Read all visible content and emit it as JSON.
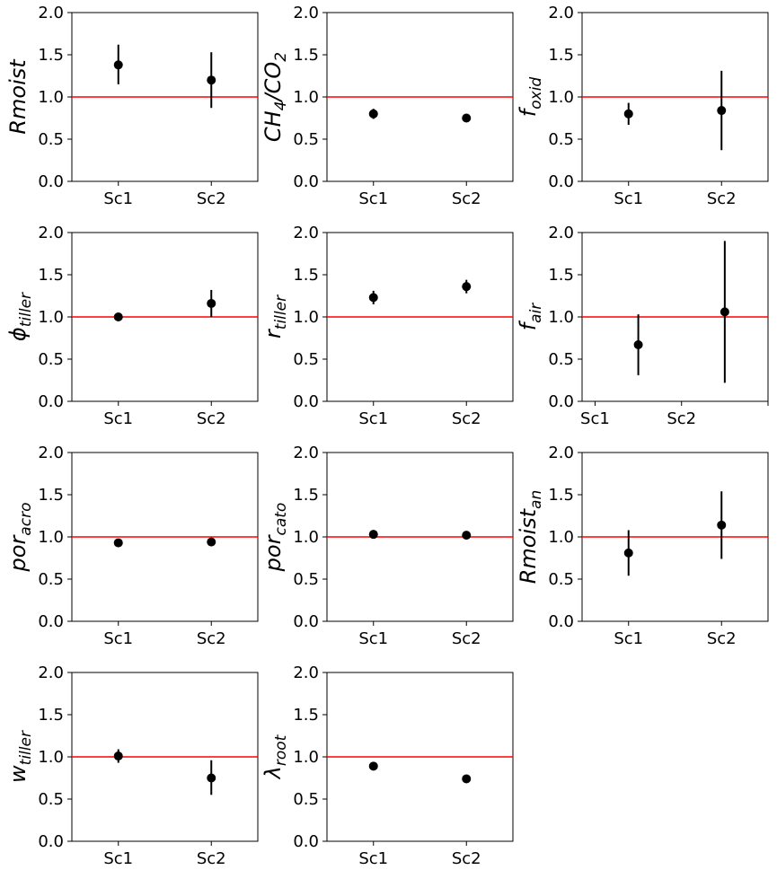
{
  "chart_data": [
    {
      "type": "scatter",
      "ylabel_main": "Rmoist",
      "ylabel_sub": "",
      "categories": [
        "Sc1",
        "Sc2"
      ],
      "ylim": [
        0,
        2.0
      ],
      "yticks": [
        "0.0",
        "0.5",
        "1.0",
        "1.5",
        "2.0"
      ],
      "reference_line": 1.0,
      "points": [
        {
          "x": "Sc1",
          "y": 1.38,
          "low": 1.15,
          "high": 1.62
        },
        {
          "x": "Sc2",
          "y": 1.2,
          "low": 0.87,
          "high": 1.53
        }
      ]
    },
    {
      "type": "scatter",
      "ylabel_main": "CH",
      "ylabel_sub": "4",
      "ylabel_main2": "/CO",
      "ylabel_sub2": "2",
      "categories": [
        "Sc1",
        "Sc2"
      ],
      "ylim": [
        0,
        2.0
      ],
      "yticks": [
        "0.0",
        "0.5",
        "1.0",
        "1.5",
        "2.0"
      ],
      "reference_line": 1.0,
      "points": [
        {
          "x": "Sc1",
          "y": 0.8,
          "low": 0.74,
          "high": 0.86
        },
        {
          "x": "Sc2",
          "y": 0.75,
          "low": 0.72,
          "high": 0.78
        }
      ]
    },
    {
      "type": "scatter",
      "ylabel_main": "f",
      "ylabel_sub": "oxid",
      "categories": [
        "Sc1",
        "Sc2"
      ],
      "ylim": [
        0,
        2.0
      ],
      "yticks": [
        "0.0",
        "0.5",
        "1.0",
        "1.5",
        "2.0"
      ],
      "reference_line": 1.0,
      "points": [
        {
          "x": "Sc1",
          "y": 0.8,
          "low": 0.67,
          "high": 0.93
        },
        {
          "x": "Sc2",
          "y": 0.84,
          "low": 0.37,
          "high": 1.31
        }
      ]
    },
    {
      "type": "scatter",
      "ylabel_main": "ϕ",
      "ylabel_sub": "tiller",
      "categories": [
        "Sc1",
        "Sc2"
      ],
      "ylim": [
        0,
        2.0
      ],
      "yticks": [
        "0.0",
        "0.5",
        "1.0",
        "1.5",
        "2.0"
      ],
      "reference_line": 1.0,
      "points": [
        {
          "x": "Sc1",
          "y": 1.0,
          "low": 0.97,
          "high": 1.03
        },
        {
          "x": "Sc2",
          "y": 1.16,
          "low": 1.0,
          "high": 1.32
        }
      ]
    },
    {
      "type": "scatter",
      "ylabel_main": "r",
      "ylabel_sub": "tiller",
      "categories": [
        "Sc1",
        "Sc2"
      ],
      "ylim": [
        0,
        2.0
      ],
      "yticks": [
        "0.0",
        "0.5",
        "1.0",
        "1.5",
        "2.0"
      ],
      "reference_line": 1.0,
      "points": [
        {
          "x": "Sc1",
          "y": 1.23,
          "low": 1.15,
          "high": 1.31
        },
        {
          "x": "Sc2",
          "y": 1.36,
          "low": 1.28,
          "high": 1.44
        }
      ]
    },
    {
      "type": "scatter",
      "ylabel_main": "f",
      "ylabel_sub": "air",
      "categories": [
        "Sc1",
        "Sc2"
      ],
      "tick_positions": [
        0,
        1,
        2
      ],
      "tick_labels": [
        "Sc1",
        "Sc2",
        ""
      ],
      "point_positions": [
        0.5,
        1.5
      ],
      "ylim": [
        0,
        2.0
      ],
      "yticks": [
        "0.0",
        "0.5",
        "1.0",
        "1.5",
        "2.0"
      ],
      "reference_line": 1.0,
      "points": [
        {
          "x": "Sc1",
          "y": 0.67,
          "low": 0.31,
          "high": 1.03
        },
        {
          "x": "Sc2",
          "y": 1.06,
          "low": 0.22,
          "high": 1.9
        }
      ]
    },
    {
      "type": "scatter",
      "ylabel_main": "por",
      "ylabel_sub": "acro",
      "categories": [
        "Sc1",
        "Sc2"
      ],
      "ylim": [
        0,
        2.0
      ],
      "yticks": [
        "0.0",
        "0.5",
        "1.0",
        "1.5",
        "2.0"
      ],
      "reference_line": 1.0,
      "points": [
        {
          "x": "Sc1",
          "y": 0.93,
          "low": 0.91,
          "high": 0.95
        },
        {
          "x": "Sc2",
          "y": 0.94,
          "low": 0.92,
          "high": 0.96
        }
      ]
    },
    {
      "type": "scatter",
      "ylabel_main": "por",
      "ylabel_sub": "cato",
      "categories": [
        "Sc1",
        "Sc2"
      ],
      "ylim": [
        0,
        2.0
      ],
      "yticks": [
        "0.0",
        "0.5",
        "1.0",
        "1.5",
        "2.0"
      ],
      "reference_line": 1.0,
      "points": [
        {
          "x": "Sc1",
          "y": 1.03,
          "low": 1.01,
          "high": 1.05
        },
        {
          "x": "Sc2",
          "y": 1.02,
          "low": 1.0,
          "high": 1.04
        }
      ]
    },
    {
      "type": "scatter",
      "ylabel_main": "Rmoist",
      "ylabel_sub": "an",
      "categories": [
        "Sc1",
        "Sc2"
      ],
      "ylim": [
        0,
        2.0
      ],
      "yticks": [
        "0.0",
        "0.5",
        "1.0",
        "1.5",
        "2.0"
      ],
      "reference_line": 1.0,
      "points": [
        {
          "x": "Sc1",
          "y": 0.81,
          "low": 0.54,
          "high": 1.08
        },
        {
          "x": "Sc2",
          "y": 1.14,
          "low": 0.74,
          "high": 1.54
        }
      ]
    },
    {
      "type": "scatter",
      "ylabel_main": "w",
      "ylabel_sub": "tiller",
      "categories": [
        "Sc1",
        "Sc2"
      ],
      "ylim": [
        0,
        2.0
      ],
      "yticks": [
        "0.0",
        "0.5",
        "1.0",
        "1.5",
        "2.0"
      ],
      "reference_line": 1.0,
      "points": [
        {
          "x": "Sc1",
          "y": 1.01,
          "low": 0.93,
          "high": 1.09
        },
        {
          "x": "Sc2",
          "y": 0.75,
          "low": 0.55,
          "high": 0.96
        }
      ]
    },
    {
      "type": "scatter",
      "ylabel_main": "λ",
      "ylabel_sub": "root",
      "categories": [
        "Sc1",
        "Sc2"
      ],
      "ylim": [
        0,
        2.0
      ],
      "yticks": [
        "0.0",
        "0.5",
        "1.0",
        "1.5",
        "2.0"
      ],
      "reference_line": 1.0,
      "points": [
        {
          "x": "Sc1",
          "y": 0.89,
          "low": 0.84,
          "high": 0.94
        },
        {
          "x": "Sc2",
          "y": 0.74,
          "low": 0.72,
          "high": 0.76
        }
      ]
    }
  ],
  "colors": {
    "reference_line": "#ff0000",
    "marker": "#000000",
    "axes": "#000000"
  }
}
